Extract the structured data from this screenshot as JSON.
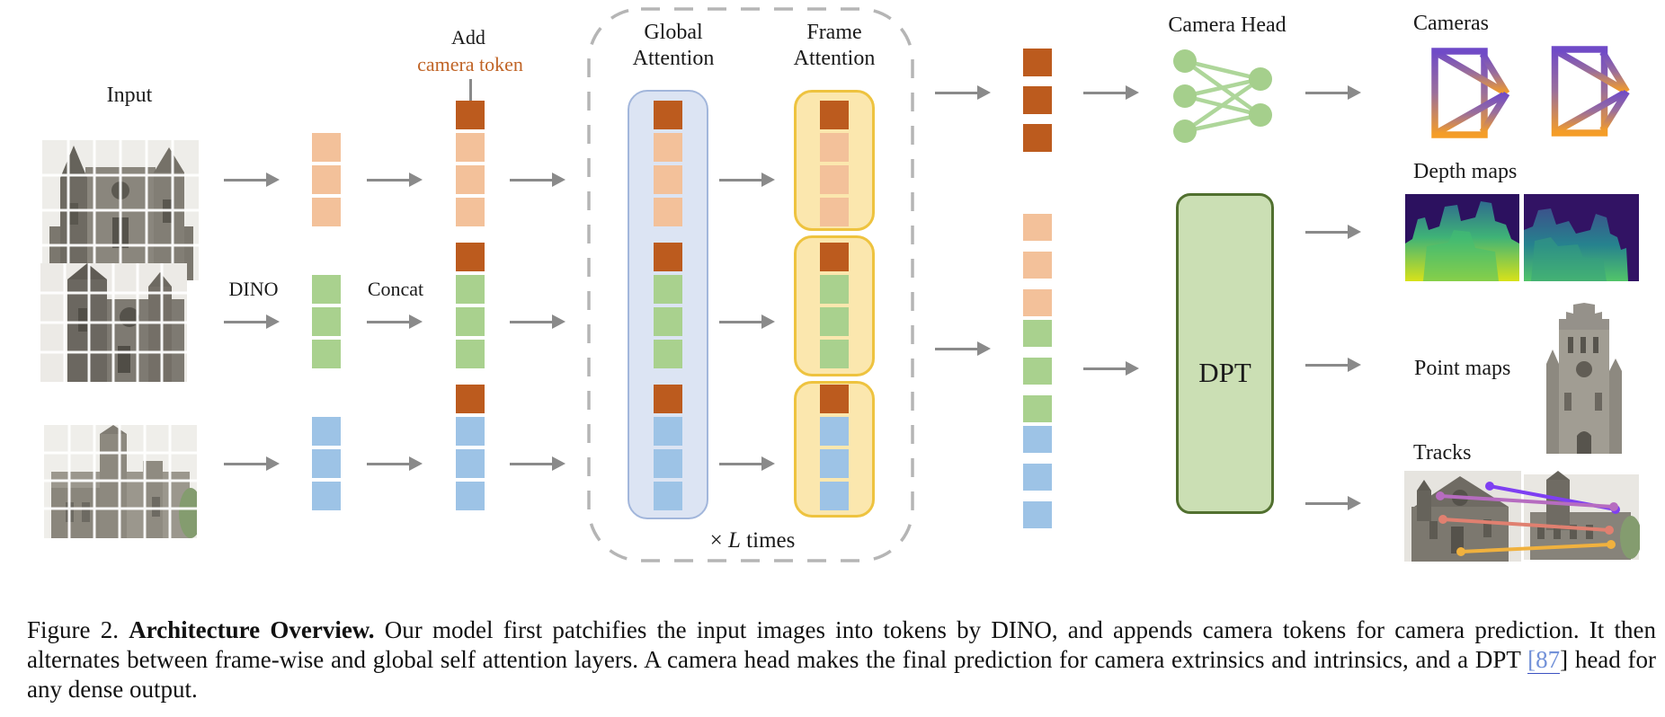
{
  "figure": {
    "input_label": "Input",
    "dino_label": "DINO",
    "concat_label": "Concat",
    "add_token_label": {
      "line1": "Add",
      "line2": "camera token"
    },
    "global_attention": {
      "line1": "Global",
      "line2": "Attention"
    },
    "frame_attention": {
      "line1": "Frame",
      "line2": "Attention"
    },
    "loop_label": {
      "times_symbol": "×",
      "variable": "L",
      "word": " times"
    },
    "camera_head_label": "Camera Head",
    "dpt_label": "DPT",
    "outputs": {
      "cameras_label": "Cameras",
      "depth_maps_label": "Depth maps",
      "point_maps_label": "Point maps",
      "tracks_label": "Tracks"
    },
    "token_colors": {
      "camera": "#bc5b1e",
      "frame1": "#f3c19a",
      "frame2": "#a9d18e",
      "frame3": "#9dc3e6"
    },
    "token_stacks": {
      "dino_frame1": [
        "frame1",
        "frame1",
        "frame1"
      ],
      "dino_frame2": [
        "frame2",
        "frame2",
        "frame2"
      ],
      "dino_frame3": [
        "frame3",
        "frame3",
        "frame3"
      ],
      "concat_frame1": [
        "camera",
        "frame1",
        "frame1",
        "frame1"
      ],
      "concat_frame2": [
        "camera",
        "frame2",
        "frame2",
        "frame2"
      ],
      "concat_frame3": [
        "camera",
        "frame3",
        "frame3",
        "frame3"
      ],
      "global_frame1": [
        "camera",
        "frame1",
        "frame1",
        "frame1"
      ],
      "global_frame2": [
        "camera",
        "frame2",
        "frame2",
        "frame2"
      ],
      "global_frame3": [
        "camera",
        "frame3",
        "frame3",
        "frame3"
      ],
      "frameattn_frame1": [
        "camera",
        "frame1",
        "frame1",
        "frame1"
      ],
      "frameattn_frame2": [
        "camera",
        "frame2",
        "frame2",
        "frame2"
      ],
      "frameattn_frame3": [
        "camera",
        "frame3",
        "frame3",
        "frame3"
      ],
      "out_camera": [
        "camera",
        "camera",
        "camera"
      ],
      "out_frame1": [
        "frame1",
        "frame1",
        "frame1"
      ],
      "out_frame2": [
        "frame2",
        "frame2",
        "frame2"
      ],
      "out_frame3": [
        "frame3",
        "frame3",
        "frame3"
      ]
    },
    "style_colors": {
      "arrow": "#8a8a8a",
      "dashed_box_border": "#b5b5b5",
      "global_attention_fill": "#dce4f3",
      "global_attention_border": "#a2b6db",
      "frame_attention_fill": "#fbe7ae",
      "frame_attention_border": "#eec33f",
      "dpt_fill": "#cbdfb4",
      "dpt_border": "#51702f",
      "camera_token_text": "#c06426",
      "mlp_node_green": "#a5cf8c",
      "frustum_purple": "#6f4ac8",
      "frustum_orange": "#f59d27",
      "citation_link": "#7291d8"
    }
  },
  "caption": {
    "figure_prefix": "Figure 2. ",
    "title_bold": "Architecture Overview.",
    "text_part1": " Our model first patchifies the input images into tokens by DINO, and appends camera tokens for camera prediction. It then alternates between frame-wise and global self attention layers. A camera head makes the final prediction for camera extrinsics and intrinsics, and a DPT ",
    "citation": "[87",
    "citation_close_bracket": "]",
    "text_part2": " head for any dense output."
  }
}
